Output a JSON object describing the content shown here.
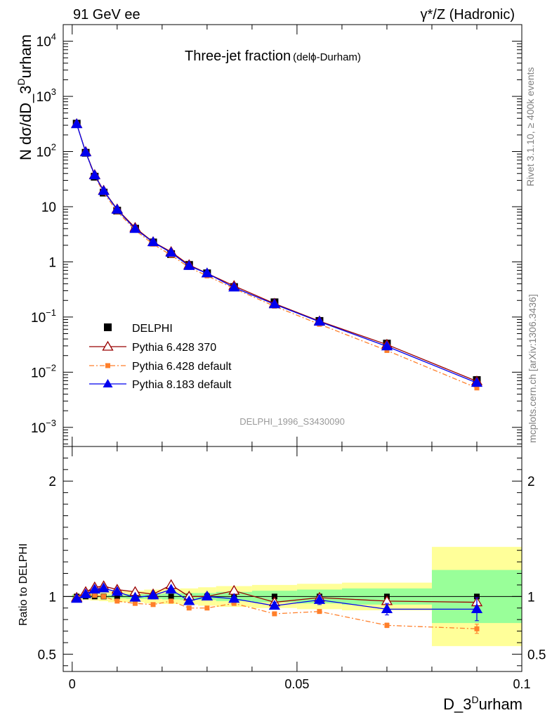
{
  "header": {
    "left": "91 GeV ee",
    "right": "γ*/Z (Hadronic)"
  },
  "side_text": {
    "rivet": "Rivet 3.1.10, ≥ 400k events",
    "mcplots": "mcplots.cern.ch [arXiv:1306.3436]"
  },
  "chart_data": {
    "type": "line",
    "title": "Three-jet fraction",
    "subtitle": "(delϕ-Durham)",
    "analysis_id": "DELPHI_1996_S3430090",
    "xlabel": "D_3",
    "xlabel_sup": "D",
    "xlabel_rest": "urham",
    "ylabel": "N dσ/dD_3",
    "ylabel_sup": "D",
    "ylabel_rest": "urham",
    "ratio_ylabel": "Ratio to DELPHI",
    "xlim": [
      -0.002,
      0.1
    ],
    "ylim_log": [
      0.00045,
      20000
    ],
    "ratio_ylim": [
      0.35,
      2.3
    ],
    "x_ticks": [
      "0",
      "0.05",
      "0.1"
    ],
    "x_tick_values": [
      0,
      0.05,
      0.1
    ],
    "y_tick_labels": [
      {
        "value": 0.001,
        "base": "10",
        "exp": "−3"
      },
      {
        "value": 0.01,
        "base": "10",
        "exp": "−2"
      },
      {
        "value": 0.1,
        "base": "10",
        "exp": "−1"
      },
      {
        "value": 1,
        "base": "1",
        "exp": ""
      },
      {
        "value": 10,
        "base": "10",
        "exp": ""
      },
      {
        "value": 100,
        "base": "10",
        "exp": "2"
      },
      {
        "value": 1000,
        "base": "10",
        "exp": "3"
      },
      {
        "value": 10000,
        "base": "10",
        "exp": "4"
      }
    ],
    "ratio_ticks": [
      "0.5",
      "1",
      "2"
    ],
    "ratio_tick_values": [
      0.5,
      1,
      2
    ],
    "x": [
      0.001,
      0.003,
      0.005,
      0.007,
      0.01,
      0.014,
      0.018,
      0.022,
      0.026,
      0.03,
      0.036,
      0.045,
      0.055,
      0.07,
      0.09
    ],
    "data": {
      "name": "DELPHI",
      "values": [
        320,
        95,
        35,
        18,
        8.5,
        4.0,
        2.25,
        1.38,
        0.88,
        0.62,
        0.35,
        0.185,
        0.085,
        0.033,
        0.0072
      ]
    },
    "series": [
      {
        "name": "Pythia 6.428 370",
        "color": "#990000",
        "marker": "open-triangle",
        "ratio": [
          0.99,
          1.04,
          1.08,
          1.09,
          1.06,
          1.04,
          1.02,
          1.1,
          1.0,
          1.0,
          1.05,
          0.95,
          0.99,
          0.96,
          0.95
        ]
      },
      {
        "name": "Pythia 6.428 default",
        "color": "#ff7f2a",
        "marker": "square",
        "ratio": [
          0.99,
          1.02,
          1.01,
          1.0,
          0.96,
          0.94,
          0.93,
          0.96,
          0.9,
          0.9,
          0.94,
          0.85,
          0.87,
          0.75,
          0.72
        ],
        "ratio_err": [
          0,
          0,
          0,
          0,
          0,
          0,
          0,
          0,
          0,
          0,
          0,
          0,
          0,
          0.02,
          0.04
        ]
      },
      {
        "name": "Pythia 8.183 default",
        "color": "#0000ee",
        "marker": "filled-triangle",
        "ratio": [
          0.98,
          1.02,
          1.06,
          1.07,
          1.04,
          0.99,
          1.01,
          1.06,
          0.96,
          1.0,
          0.98,
          0.92,
          0.97,
          0.89,
          0.89
        ],
        "ratio_err": [
          0,
          0,
          0,
          0,
          0,
          0,
          0,
          0,
          0.02,
          0.03,
          0,
          0.03,
          0.04,
          0.05,
          0.1
        ]
      }
    ],
    "uncertainty_bands": {
      "bins": [
        [
          0,
          0.002
        ],
        [
          0.002,
          0.004
        ],
        [
          0.004,
          0.006
        ],
        [
          0.006,
          0.008
        ],
        [
          0.008,
          0.012
        ],
        [
          0.012,
          0.016
        ],
        [
          0.016,
          0.02
        ],
        [
          0.02,
          0.024
        ],
        [
          0.024,
          0.028
        ],
        [
          0.028,
          0.032
        ],
        [
          0.032,
          0.04
        ],
        [
          0.04,
          0.05
        ],
        [
          0.05,
          0.06
        ],
        [
          0.06,
          0.08
        ],
        [
          0.08,
          0.1
        ]
      ],
      "inner": [
        0.015,
        0.01,
        0.01,
        0.01,
        0.015,
        0.02,
        0.02,
        0.025,
        0.03,
        0.03,
        0.04,
        0.05,
        0.06,
        0.07,
        0.23
      ],
      "outer": [
        0.02,
        0.03,
        0.035,
        0.04,
        0.05,
        0.05,
        0.06,
        0.065,
        0.07,
        0.08,
        0.09,
        0.1,
        0.11,
        0.12,
        0.43
      ],
      "inner_color": "#99ff99",
      "outer_color": "#ffff99"
    }
  }
}
